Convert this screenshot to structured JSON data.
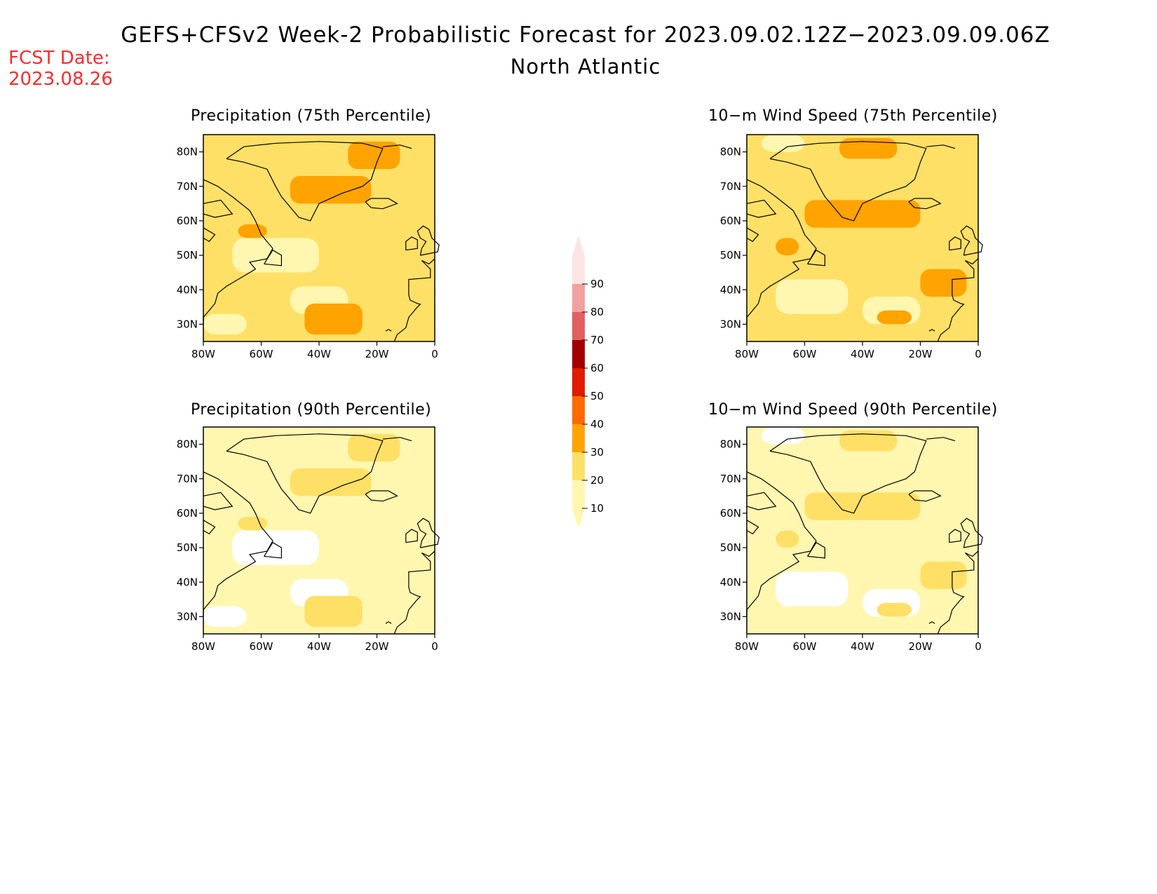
{
  "title": "GEFS+CFSv2 Week-2 Probabilistic Forecast for 2023.09.02.12Z−2023.09.09.06Z",
  "subtitle": "North Atlantic",
  "fcst_label": "FCST Date:",
  "fcst_date": "2023.08.26",
  "lat_labels": [
    "80N",
    "70N",
    "60N",
    "50N",
    "40N",
    "30N"
  ],
  "lon_labels": [
    "80W",
    "60W",
    "40W",
    "20W",
    "0"
  ],
  "colorbar": {
    "levels": [
      "90",
      "80",
      "70",
      "60",
      "50",
      "40",
      "30",
      "20",
      "10"
    ],
    "colors": [
      "#fde4e4",
      "#f4a0a0",
      "#e06060",
      "#a30000",
      "#e21a00",
      "#ff6a00",
      "#ffa300",
      "#ffe066",
      "#fff7b0"
    ]
  },
  "panels": [
    {
      "id": "precip75",
      "title": "Precipitation (75th Percentile)",
      "base_color": "#ffe066",
      "patch_color": "#ffa300",
      "light_color": "#fff7b0"
    },
    {
      "id": "wind75",
      "title": "10−m Wind Speed (75th Percentile)",
      "base_color": "#ffe066",
      "patch_color": "#ffa300",
      "light_color": "#fff7b0"
    },
    {
      "id": "precip90",
      "title": "Precipitation (90th Percentile)",
      "base_color": "#fff7b0",
      "patch_color": "#ffe066",
      "light_color": "#ffffff"
    },
    {
      "id": "wind90",
      "title": "10−m Wind Speed (90th Percentile)",
      "base_color": "#fff7b0",
      "patch_color": "#ffe066",
      "light_color": "#ffffff"
    }
  ]
}
